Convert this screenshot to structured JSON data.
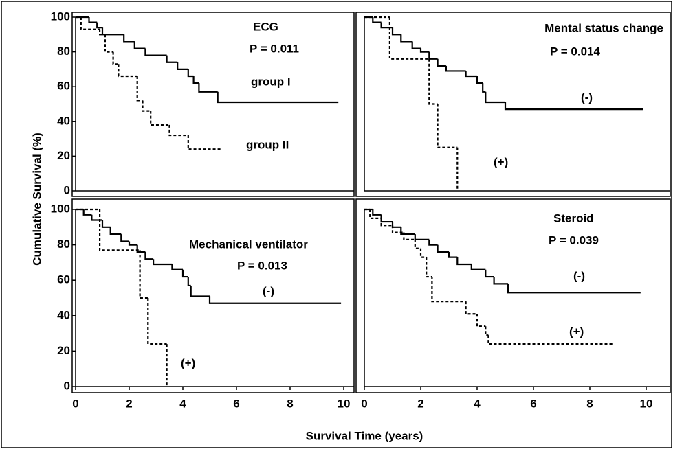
{
  "x_label": "Survival Time (years)",
  "y_label": "Cumulative Survival (%)",
  "chart_data": [
    {
      "type": "line",
      "step": true,
      "title": "ECG",
      "annotation": "P = 0.011",
      "xlim": [
        0,
        10
      ],
      "ylim": [
        0,
        100
      ],
      "yticks": [
        0,
        20,
        40,
        60,
        80,
        100
      ],
      "series": [
        {
          "name": "group I",
          "color": "#000000",
          "dash": false,
          "x": [
            0,
            0.5,
            0.8,
            1.0,
            1.8,
            2.2,
            2.6,
            3.4,
            3.8,
            4.2,
            4.4,
            4.6,
            5.3,
            9.8
          ],
          "values": [
            100,
            97,
            94,
            90,
            86,
            82,
            78,
            74,
            70,
            66,
            62,
            57,
            51,
            51
          ]
        },
        {
          "name": "group II",
          "color": "#000000",
          "dash": true,
          "x": [
            0,
            0.2,
            0.9,
            1.1,
            1.4,
            1.6,
            2.3,
            2.5,
            2.8,
            3.5,
            4.2,
            5.4
          ],
          "values": [
            100,
            93,
            90,
            80,
            73,
            66,
            52,
            46,
            38,
            32,
            24,
            24
          ]
        }
      ]
    },
    {
      "type": "line",
      "step": true,
      "title": "Mental status change",
      "annotation": "P = 0.014",
      "xlim": [
        0,
        10
      ],
      "ylim": [
        0,
        100
      ],
      "series": [
        {
          "name": "(-)",
          "color": "#000000",
          "dash": false,
          "x": [
            0,
            0.3,
            0.6,
            1.0,
            1.3,
            1.7,
            2.0,
            2.3,
            2.6,
            2.9,
            3.6,
            4.0,
            4.2,
            4.3,
            5.0,
            9.9
          ],
          "values": [
            100,
            97,
            94,
            90,
            86,
            82,
            80,
            76,
            72,
            69,
            66,
            62,
            57,
            51,
            47,
            47
          ]
        },
        {
          "name": "(+)",
          "color": "#000000",
          "dash": true,
          "x": [
            0,
            0.9,
            2.3,
            2.6,
            3.3
          ],
          "values": [
            100,
            76,
            50,
            25,
            0
          ]
        }
      ]
    },
    {
      "type": "line",
      "step": true,
      "title": "Mechanical ventilator",
      "annotation": "P = 0.013",
      "xlim": [
        0,
        10
      ],
      "ylim": [
        0,
        100
      ],
      "xticks": [
        0,
        2,
        4,
        6,
        8,
        10
      ],
      "yticks": [
        0,
        20,
        40,
        60,
        80,
        100
      ],
      "series": [
        {
          "name": "(-)",
          "color": "#000000",
          "dash": false,
          "x": [
            0,
            0.3,
            0.6,
            1.0,
            1.3,
            1.7,
            2.0,
            2.3,
            2.6,
            2.9,
            3.6,
            4.0,
            4.2,
            4.3,
            5.0,
            9.9
          ],
          "values": [
            100,
            97,
            94,
            90,
            86,
            82,
            80,
            76,
            72,
            69,
            66,
            62,
            57,
            51,
            47,
            47
          ]
        },
        {
          "name": "(+)",
          "color": "#000000",
          "dash": true,
          "x": [
            0,
            0.9,
            2.4,
            2.7,
            3.4
          ],
          "values": [
            100,
            77,
            50,
            24,
            0
          ]
        }
      ]
    },
    {
      "type": "line",
      "step": true,
      "title": "Steroid",
      "annotation": "P = 0.039",
      "xlim": [
        0,
        10
      ],
      "ylim": [
        0,
        100
      ],
      "xticks": [
        0,
        2,
        4,
        6,
        8,
        10
      ],
      "series": [
        {
          "name": "(-)",
          "color": "#000000",
          "dash": false,
          "x": [
            0,
            0.3,
            0.6,
            1.0,
            1.3,
            1.8,
            2.3,
            2.6,
            3.0,
            3.3,
            3.8,
            4.3,
            4.6,
            5.1,
            9.8
          ],
          "values": [
            100,
            97,
            93,
            90,
            86,
            83,
            80,
            76,
            73,
            69,
            66,
            62,
            58,
            53,
            53
          ]
        },
        {
          "name": "(+)",
          "color": "#000000",
          "dash": true,
          "x": [
            0,
            0.2,
            0.6,
            1.0,
            1.4,
            1.8,
            2.0,
            2.2,
            2.4,
            3.6,
            4.0,
            4.3,
            4.4,
            8.8
          ],
          "values": [
            100,
            95,
            91,
            87,
            83,
            78,
            73,
            62,
            48,
            41,
            34,
            29,
            24,
            24
          ]
        }
      ]
    }
  ]
}
